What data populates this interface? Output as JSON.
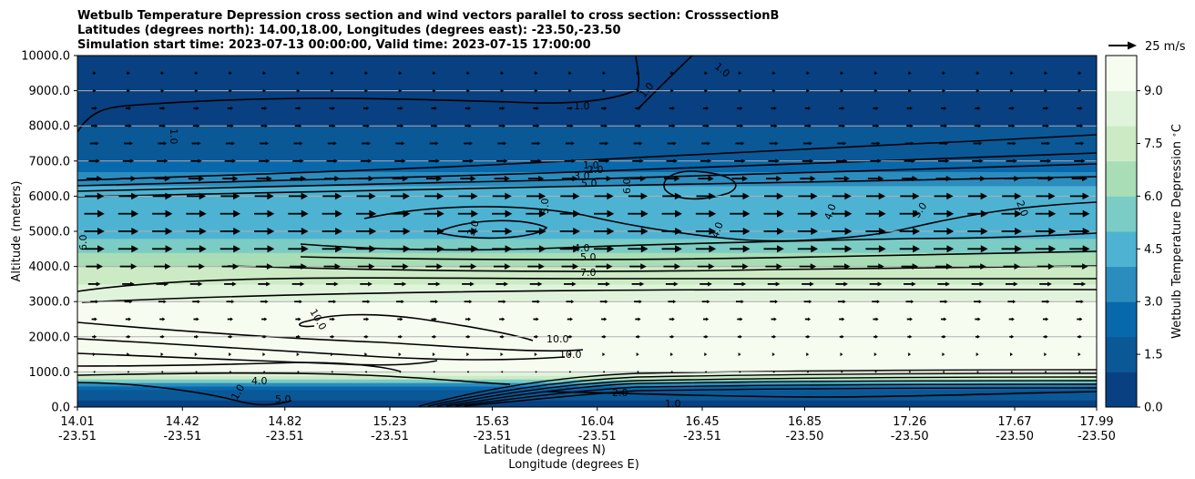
{
  "chart_data": {
    "type": "heatmap",
    "title_lines": [
      "Wetbulb Temperature Depression cross section and wind vectors parallel to cross section: CrosssectionB",
      "Latitudes (degrees north): 14.00,18.00, Longitudes (degrees east): -23.50,-23.50",
      "Simulation start time: 2023-07-13 00:00:00, Valid time: 2023-07-15 17:00:00"
    ],
    "ylabel": "Altitude (meters)",
    "xlabel_lat": "Latitude (degrees N)",
    "xlabel_lon": "Longitude (degrees E)",
    "ylim": [
      0,
      10000
    ],
    "xlim": [
      14.01,
      17.99
    ],
    "y_ticks": [
      "0.0",
      "1000.0",
      "2000.0",
      "3000.0",
      "4000.0",
      "5000.0",
      "6000.0",
      "7000.0",
      "8000.0",
      "9000.0",
      "10000.0"
    ],
    "x_ticks": [
      {
        "lat": "14.01",
        "lon": "-23.51"
      },
      {
        "lat": "14.42",
        "lon": "-23.51"
      },
      {
        "lat": "14.82",
        "lon": "-23.51"
      },
      {
        "lat": "15.23",
        "lon": "-23.51"
      },
      {
        "lat": "15.63",
        "lon": "-23.51"
      },
      {
        "lat": "16.04",
        "lon": "-23.51"
      },
      {
        "lat": "16.45",
        "lon": "-23.51"
      },
      {
        "lat": "16.85",
        "lon": "-23.50"
      },
      {
        "lat": "17.26",
        "lon": "-23.50"
      },
      {
        "lat": "17.67",
        "lon": "-23.50"
      },
      {
        "lat": "17.99",
        "lon": "-23.50"
      }
    ],
    "grid": "horizontal",
    "colorbar": {
      "label": "Wetbulb Temperature Depression $^\\circ$C",
      "range": [
        0,
        10
      ],
      "ticks": [
        "0.0",
        "1.5",
        "3.0",
        "4.5",
        "6.0",
        "7.5",
        "9.0"
      ],
      "colors": [
        "#084081",
        "#0b5897",
        "#0868ac",
        "#2b8cbe",
        "#4eb3d3",
        "#7bccc4",
        "#a8ddb5",
        "#ccebc5",
        "#e0f3db",
        "#f7fcf0"
      ]
    },
    "quiver_key": {
      "label": "25 m/s",
      "speed": 25
    },
    "field_profile": [
      {
        "alt": 0,
        "value": 0.8
      },
      {
        "alt": 500,
        "value": 1.2
      },
      {
        "alt": 1000,
        "value": 9.5
      },
      {
        "alt": 2000,
        "value": 10.0
      },
      {
        "alt": 3000,
        "value": 9.0
      },
      {
        "alt": 4000,
        "value": 7.0
      },
      {
        "alt": 5000,
        "value": 4.5
      },
      {
        "alt": 6000,
        "value": 5.0
      },
      {
        "alt": 7000,
        "value": 2.0
      },
      {
        "alt": 8000,
        "value": 1.0
      },
      {
        "alt": 9000,
        "value": 0.9
      },
      {
        "alt": 10000,
        "value": 0.8
      }
    ],
    "contour_labels": [
      "1.0",
      "1.0",
      "1.0",
      "1.0",
      "1.0",
      "1.0",
      "2.0",
      "3.0",
      "5.0",
      "6.0",
      "5.0",
      "3.0",
      "4.0",
      "4.0",
      "5.0",
      "7.0",
      "4.0",
      "3.0",
      "2.0",
      "6.0",
      "10.0",
      "10.0",
      "10.0",
      "4.0",
      "5.0",
      "1.0",
      "2.0"
    ],
    "wind_rows": [
      {
        "alt": 9500,
        "speed": 3
      },
      {
        "alt": 9000,
        "speed": 3
      },
      {
        "alt": 8500,
        "speed": 5
      },
      {
        "alt": 8000,
        "speed": 6
      },
      {
        "alt": 7500,
        "speed": 8
      },
      {
        "alt": 7000,
        "speed": 10
      },
      {
        "alt": 6500,
        "speed": 14
      },
      {
        "alt": 6000,
        "speed": 17
      },
      {
        "alt": 5500,
        "speed": 18
      },
      {
        "alt": 5000,
        "speed": 18
      },
      {
        "alt": 4500,
        "speed": 18
      },
      {
        "alt": 4000,
        "speed": 15
      },
      {
        "alt": 3500,
        "speed": 11
      },
      {
        "alt": 3000,
        "speed": 7
      },
      {
        "alt": 2500,
        "speed": 5
      },
      {
        "alt": 2000,
        "speed": 4
      },
      {
        "alt": 1500,
        "speed": 2
      },
      {
        "alt": 1000,
        "speed": 1
      }
    ]
  }
}
